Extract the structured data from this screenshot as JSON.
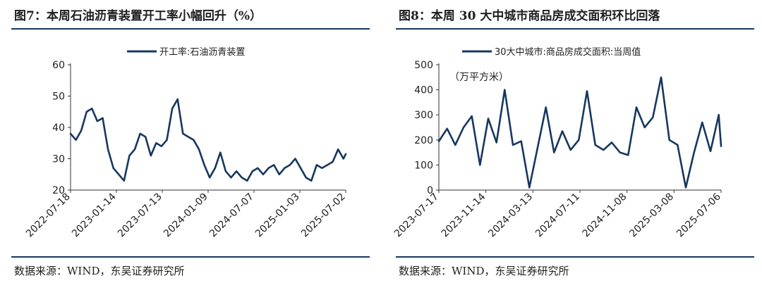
{
  "colors": {
    "series": "#17375e",
    "axis": "#333333"
  },
  "panels": [
    {
      "title": "图7：本周石油沥青装置开工率小幅回升（%）",
      "source": "数据来源：WIND，东吴证券研究所",
      "chart_data": {
        "type": "line",
        "title": "图7：本周石油沥青装置开工率小幅回升（%）",
        "series": [
          {
            "name": "开工率:石油沥青装置",
            "x": [
              "2022-07-18",
              "2022-08-08",
              "2022-08-29",
              "2022-09-19",
              "2022-10-10",
              "2022-10-31",
              "2022-11-21",
              "2022-12-12",
              "2023-01-02",
              "2023-01-23",
              "2023-02-13",
              "2023-03-06",
              "2023-03-27",
              "2023-04-17",
              "2023-05-08",
              "2023-05-29",
              "2023-06-19",
              "2023-07-10",
              "2023-07-31",
              "2023-08-21",
              "2023-09-11",
              "2023-10-02",
              "2023-10-23",
              "2023-11-13",
              "2023-12-04",
              "2023-12-25",
              "2024-01-15",
              "2024-02-05",
              "2024-02-26",
              "2024-03-18",
              "2024-04-08",
              "2024-04-29",
              "2024-05-20",
              "2024-06-10",
              "2024-07-01",
              "2024-07-22",
              "2024-08-12",
              "2024-09-02",
              "2024-09-23",
              "2024-10-14",
              "2024-11-04",
              "2024-11-25",
              "2024-12-16",
              "2025-01-06",
              "2025-01-27",
              "2025-02-17",
              "2025-03-10",
              "2025-03-31",
              "2025-04-21",
              "2025-05-12",
              "2025-06-02",
              "2025-06-23",
              "2025-07-02"
            ],
            "values": [
              38,
              36,
              39,
              45,
              46,
              42,
              43,
              33,
              27,
              25,
              23,
              31,
              33,
              38,
              37,
              31,
              35,
              34,
              36,
              46,
              49,
              38,
              37,
              36,
              33,
              28,
              24,
              27,
              32,
              26,
              24,
              26,
              24,
              23,
              26,
              27,
              25,
              27,
              28,
              25,
              27,
              28,
              30,
              27,
              24,
              23,
              28,
              27,
              28,
              29,
              33,
              30,
              31.5
            ]
          }
        ],
        "xtick_labels": [
          "2022-07-18",
          "2023-01-14",
          "2023-07-13",
          "2024-01-09",
          "2024-07-07",
          "2025-01-03",
          "2025-07-02"
        ],
        "xlim": [
          "2022-07-18",
          "2025-07-02"
        ],
        "yticks": [
          20,
          30,
          40,
          50,
          60
        ],
        "ylim": [
          20,
          60
        ],
        "grid": false,
        "legend": "top-center"
      }
    },
    {
      "title": "图8：本周 30 大中城市商品房成交面积环比回落",
      "source": "数据来源：WIND，东吴证券研究所",
      "chart_data": {
        "type": "line",
        "title": "图8：本周 30 大中城市商品房成交面积环比回落",
        "annotation": "（万平方米）",
        "series": [
          {
            "name": "30大中城市:商品房成交面积:当周值",
            "x": [
              "2023-07-17",
              "2023-08-07",
              "2023-08-28",
              "2023-09-18",
              "2023-10-09",
              "2023-10-30",
              "2023-11-20",
              "2023-12-11",
              "2024-01-01",
              "2024-01-22",
              "2024-02-12",
              "2024-03-04",
              "2024-03-25",
              "2024-04-15",
              "2024-05-06",
              "2024-05-27",
              "2024-06-17",
              "2024-07-08",
              "2024-07-29",
              "2024-08-19",
              "2024-09-09",
              "2024-09-30",
              "2024-10-21",
              "2024-11-11",
              "2024-12-02",
              "2024-12-23",
              "2025-01-13",
              "2025-02-03",
              "2025-02-24",
              "2025-03-17",
              "2025-04-07",
              "2025-04-28",
              "2025-05-19",
              "2025-06-09",
              "2025-06-30",
              "2025-07-06"
            ],
            "values": [
              195,
              245,
              180,
              250,
              295,
              100,
              285,
              190,
              400,
              180,
              195,
              10,
              170,
              330,
              150,
              235,
              160,
              200,
              395,
              180,
              160,
              190,
              150,
              140,
              330,
              250,
              290,
              450,
              200,
              180,
              10,
              150,
              270,
              155,
              300,
              175
            ]
          }
        ],
        "xtick_labels": [
          "2023-07-17",
          "2023-11-14",
          "2024-03-13",
          "2024-07-11",
          "2024-11-08",
          "2025-03-08",
          "2025-07-06"
        ],
        "xlim": [
          "2023-07-17",
          "2025-07-06"
        ],
        "yticks": [
          0,
          100,
          200,
          300,
          400,
          500
        ],
        "ylim": [
          0,
          500
        ],
        "grid": false,
        "legend": "top-center"
      }
    }
  ]
}
